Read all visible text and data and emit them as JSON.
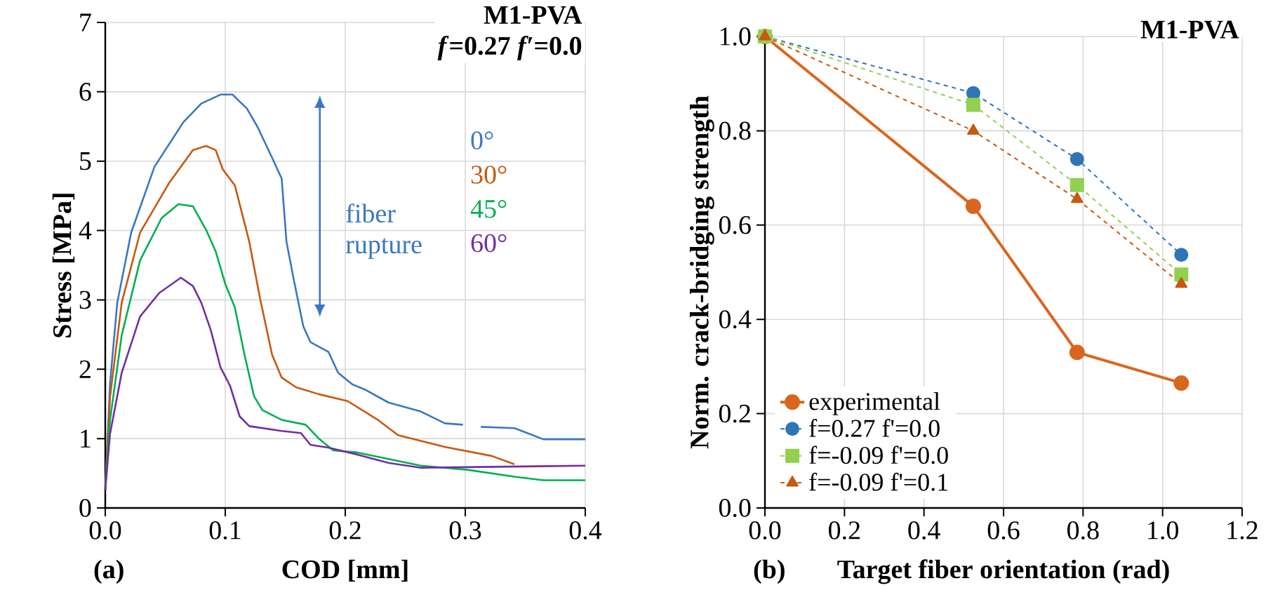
{
  "chart_data": [
    {
      "type": "line",
      "title": "M1-PVA",
      "subtitle": "*f*=0.27 *f′*=0.0",
      "xlabel": "COD [mm]",
      "ylabel": "Stress [MPa]",
      "annotations": [
        "fiber rupture",
        "(a)"
      ],
      "xlim": [
        0,
        0.4
      ],
      "xticks": [
        {
          "value": 0,
          "label": "0.0"
        },
        {
          "value": 0.1,
          "label": "0.1"
        },
        {
          "value": 0.2,
          "label": "0.2"
        },
        {
          "value": 0.3,
          "label": "0.3"
        },
        {
          "value": 0.4,
          "label": "0.4"
        }
      ],
      "ylim": [
        0,
        7
      ],
      "yticks": [
        0,
        1,
        2,
        3,
        4,
        5,
        6,
        7
      ],
      "grid": true,
      "legend": false,
      "marker": "none",
      "line_style": "solid",
      "series": [
        {
          "name": "0°",
          "color": "#3a78c0",
          "x": [
            0,
            0.004,
            0.01,
            0.0216,
            0.041,
            0.065,
            0.08,
            0.096,
            0.106,
            0.118,
            0.127,
            0.139,
            0.147,
            0.151,
            0.157,
            0.165,
            0.171,
            0.186,
            0.194,
            0.206,
            0.216,
            0.236,
            0.263,
            0.283,
            0.298,
            0.305,
            0.313,
            0.341,
            0.365,
            0.4
          ],
          "values": [
            0.26,
            1.8,
            2.96,
            3.97,
            4.92,
            5.56,
            5.83,
            5.96,
            5.96,
            5.76,
            5.49,
            5.05,
            4.75,
            3.84,
            3.3,
            2.62,
            2.39,
            2.25,
            1.95,
            1.78,
            1.71,
            1.52,
            1.39,
            1.22,
            1.2,
            null,
            1.17,
            1.15,
            0.99,
            0.99
          ]
        },
        {
          "name": "30°",
          "color": "#c55a11",
          "x": [
            0,
            0.004,
            0.0137,
            0.029,
            0.053,
            0.073,
            0.084,
            0.092,
            0.098,
            0.108,
            0.12,
            0.129,
            0.139,
            0.147,
            0.159,
            0.178,
            0.202,
            0.228,
            0.244,
            0.283,
            0.322,
            0.341
          ],
          "values": [
            0.26,
            1.6,
            2.96,
            3.97,
            4.68,
            5.16,
            5.22,
            5.16,
            4.88,
            4.65,
            3.84,
            3.02,
            2.21,
            1.88,
            1.74,
            1.64,
            1.54,
            1.26,
            1.05,
            0.88,
            0.75,
            0.63
          ]
        },
        {
          "name": "45°",
          "color": "#00b050",
          "x": [
            0,
            0.004,
            0.0137,
            0.029,
            0.047,
            0.061,
            0.073,
            0.084,
            0.092,
            0.1,
            0.108,
            0.116,
            0.124,
            0.131,
            0.147,
            0.167,
            0.178,
            0.19,
            0.21,
            0.263,
            0.302,
            0.341,
            0.365,
            0.4
          ],
          "values": [
            0.26,
            1.27,
            2.49,
            3.57,
            4.18,
            4.38,
            4.35,
            4.01,
            3.7,
            3.23,
            2.89,
            2.21,
            1.61,
            1.41,
            1.27,
            1.2,
            1.0,
            0.83,
            0.8,
            0.61,
            0.55,
            0.45,
            0.4,
            0.4
          ]
        },
        {
          "name": "60°",
          "color": "#7030a0",
          "x": [
            0,
            0.004,
            0.0137,
            0.029,
            0.045,
            0.063,
            0.073,
            0.08,
            0.088,
            0.096,
            0.104,
            0.112,
            0.12,
            0.147,
            0.163,
            0.171,
            0.186,
            0.21,
            0.236,
            0.263,
            0.4
          ],
          "values": [
            0.26,
            1.07,
            1.95,
            2.76,
            3.1,
            3.32,
            3.2,
            2.96,
            2.56,
            2.03,
            1.76,
            1.32,
            1.18,
            1.11,
            1.08,
            0.91,
            0.87,
            0.77,
            0.65,
            0.58,
            0.61
          ]
        }
      ]
    },
    {
      "type": "line",
      "title": "M1-PVA",
      "xlabel": "Target fiber orientation (rad)",
      "ylabel": "Norm. crack-bridging strength",
      "annotations": [
        "(b)"
      ],
      "x": [
        0,
        0.524,
        0.785,
        1.047
      ],
      "xlim": [
        0,
        1.2
      ],
      "xticks": [
        {
          "value": 0,
          "label": "0.0"
        },
        {
          "value": 0.2,
          "label": "0.2"
        },
        {
          "value": 0.4,
          "label": "0.4"
        },
        {
          "value": 0.6,
          "label": "0.6"
        },
        {
          "value": 0.8,
          "label": "0.8"
        },
        {
          "value": 1.0,
          "label": "1.0"
        },
        {
          "value": 1.2,
          "label": "1.2"
        }
      ],
      "ylim": [
        0,
        1
      ],
      "yticks": [
        {
          "value": 0,
          "label": "0.0"
        },
        {
          "value": 0.2,
          "label": "0.2"
        },
        {
          "value": 0.4,
          "label": "0.4"
        },
        {
          "value": 0.6,
          "label": "0.6"
        },
        {
          "value": 0.8,
          "label": "0.8"
        },
        {
          "value": 1.0,
          "label": "1.0"
        }
      ],
      "grid": true,
      "legend": "bottom left",
      "series": [
        {
          "name": "experimental",
          "color": "#d9661f",
          "marker": "circle",
          "line_style": "solid",
          "values": [
            1,
            0.64,
            0.33,
            0.265
          ]
        },
        {
          "name": "f=0.27 f'=0.0",
          "color": "#2e75b6",
          "marker": "circle",
          "line_style": "dashed",
          "values": [
            1,
            0.88,
            0.74,
            0.537
          ]
        },
        {
          "name": "f=-0.09 f'=0.0",
          "color": "#92d050",
          "marker": "square",
          "line_style": "dashed",
          "values": [
            1,
            0.855,
            0.685,
            0.495
          ]
        },
        {
          "name": "f=-0.09 f'=0.1",
          "color": "#c55a11",
          "marker": "triangle",
          "line_style": "dashed",
          "values": [
            1,
            0.8,
            0.655,
            0.475
          ]
        }
      ]
    }
  ]
}
